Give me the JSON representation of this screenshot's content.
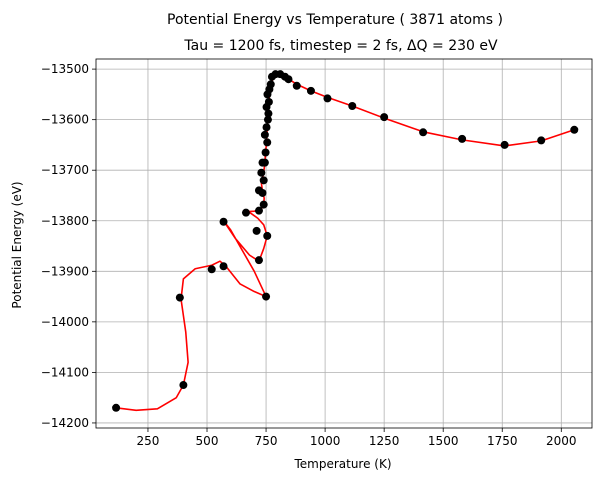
{
  "chart_data": {
    "type": "scatter",
    "title": "Potential Energy vs Temperature ( 3871 atoms )",
    "subtitle": "Tau = 1200 fs, timestep = 2 fs, ΔQ = 230 eV",
    "xlabel": "Temperature (K)",
    "ylabel": "Potential Energy (eV)",
    "xlim": [
      30,
      2130
    ],
    "ylim": [
      -14210,
      -13480
    ],
    "xticks": [
      250,
      500,
      750,
      1000,
      1250,
      1500,
      1750,
      2000
    ],
    "yticks": [
      -14200,
      -14100,
      -14000,
      -13900,
      -13800,
      -13700,
      -13600,
      -13500
    ],
    "grid": true,
    "colors": {
      "points": "#000000",
      "curve": "#ff0000"
    },
    "points": [
      [
        115,
        -14170
      ],
      [
        400,
        -14125
      ],
      [
        385,
        -13952
      ],
      [
        520,
        -13896
      ],
      [
        570,
        -13890
      ],
      [
        750,
        -13950
      ],
      [
        720,
        -13878
      ],
      [
        755,
        -13830
      ],
      [
        570,
        -13802
      ],
      [
        665,
        -13784
      ],
      [
        720,
        -13780
      ],
      [
        740,
        -13768
      ],
      [
        710,
        -13820
      ],
      [
        720,
        -13740
      ],
      [
        735,
        -13745
      ],
      [
        740,
        -13720
      ],
      [
        730,
        -13705
      ],
      [
        745,
        -13685
      ],
      [
        735,
        -13685
      ],
      [
        748,
        -13665
      ],
      [
        755,
        -13645
      ],
      [
        745,
        -13630
      ],
      [
        752,
        -13615
      ],
      [
        758,
        -13600
      ],
      [
        760,
        -13588
      ],
      [
        752,
        -13575
      ],
      [
        762,
        -13565
      ],
      [
        756,
        -13550
      ],
      [
        764,
        -13540
      ],
      [
        770,
        -13530
      ],
      [
        775,
        -13515
      ],
      [
        790,
        -13510
      ],
      [
        810,
        -13510
      ],
      [
        830,
        -13515
      ],
      [
        845,
        -13520
      ],
      [
        880,
        -13533
      ],
      [
        940,
        -13543
      ],
      [
        1010,
        -13558
      ],
      [
        1115,
        -13573
      ],
      [
        1250,
        -13595
      ],
      [
        1415,
        -13625
      ],
      [
        1580,
        -13638
      ],
      [
        1760,
        -13650
      ],
      [
        1915,
        -13641
      ],
      [
        2055,
        -13620
      ]
    ],
    "curve": [
      [
        115,
        -14170
      ],
      [
        200,
        -14175
      ],
      [
        290,
        -14172
      ],
      [
        370,
        -14150
      ],
      [
        400,
        -14125
      ],
      [
        420,
        -14080
      ],
      [
        410,
        -14020
      ],
      [
        390,
        -13955
      ],
      [
        400,
        -13915
      ],
      [
        450,
        -13895
      ],
      [
        520,
        -13888
      ],
      [
        555,
        -13880
      ],
      [
        580,
        -13890
      ],
      [
        640,
        -13925
      ],
      [
        700,
        -13940
      ],
      [
        750,
        -13950
      ],
      [
        700,
        -13900
      ],
      [
        645,
        -13855
      ],
      [
        600,
        -13818
      ],
      [
        570,
        -13800
      ],
      [
        620,
        -13835
      ],
      [
        680,
        -13868
      ],
      [
        720,
        -13880
      ],
      [
        740,
        -13855
      ],
      [
        755,
        -13830
      ],
      [
        740,
        -13808
      ],
      [
        715,
        -13795
      ],
      [
        685,
        -13785
      ],
      [
        665,
        -13782
      ],
      [
        700,
        -13781
      ],
      [
        725,
        -13779
      ],
      [
        740,
        -13770
      ],
      [
        742,
        -13755
      ],
      [
        735,
        -13742
      ],
      [
        730,
        -13725
      ],
      [
        740,
        -13705
      ],
      [
        745,
        -13685
      ],
      [
        748,
        -13665
      ],
      [
        752,
        -13645
      ],
      [
        754,
        -13625
      ],
      [
        757,
        -13605
      ],
      [
        760,
        -13588
      ],
      [
        762,
        -13570
      ],
      [
        764,
        -13552
      ],
      [
        768,
        -13540
      ],
      [
        772,
        -13528
      ],
      [
        780,
        -13518
      ],
      [
        795,
        -13511
      ],
      [
        815,
        -13512
      ],
      [
        840,
        -13518
      ],
      [
        880,
        -13530
      ],
      [
        940,
        -13543
      ],
      [
        1010,
        -13556
      ],
      [
        1115,
        -13573
      ],
      [
        1250,
        -13597
      ],
      [
        1415,
        -13624
      ],
      [
        1580,
        -13640
      ],
      [
        1760,
        -13652
      ],
      [
        1915,
        -13642
      ],
      [
        2055,
        -13620
      ]
    ]
  }
}
